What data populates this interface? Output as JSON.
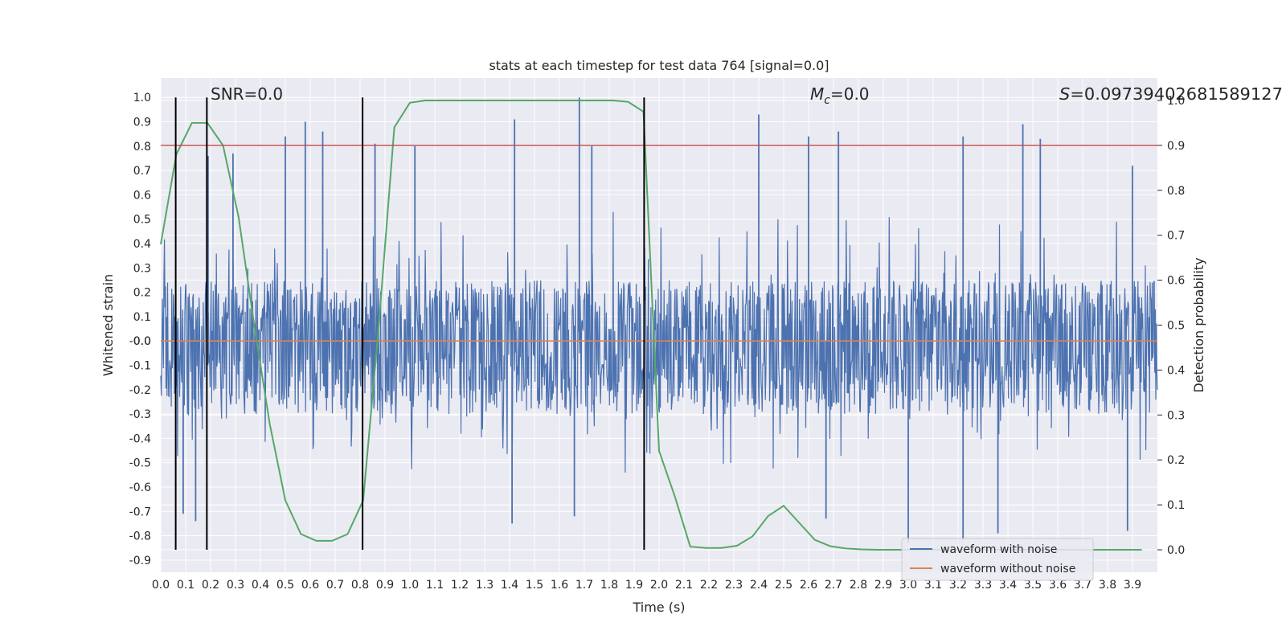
{
  "chart_data": {
    "type": "line",
    "title": "stats at each timestep for test data 764 [signal=0.0]",
    "xlabel": "Time (s)",
    "ylabel": "Whitened strain",
    "ylabel_right": "Detection probability",
    "xlim": [
      0.0,
      4.0
    ],
    "ylim": [
      -0.95,
      1.08
    ],
    "ylim_right": [
      -0.05,
      1.05
    ],
    "x_ticks": [
      "0.0",
      "0.1",
      "0.2",
      "0.3",
      "0.4",
      "0.5",
      "0.6",
      "0.7",
      "0.8",
      "0.9",
      "1.0",
      "1.1",
      "1.2",
      "1.3",
      "1.4",
      "1.5",
      "1.6",
      "1.7",
      "1.8",
      "1.9",
      "2.0",
      "2.1",
      "2.2",
      "2.3",
      "2.4",
      "2.5",
      "2.6",
      "2.7",
      "2.8",
      "2.9",
      "3.0",
      "3.1",
      "3.2",
      "3.3",
      "3.4",
      "3.5",
      "3.6",
      "3.7",
      "3.8",
      "3.9"
    ],
    "y_ticks": [
      "1.0",
      "0.9",
      "0.8",
      "0.7",
      "0.6",
      "0.5",
      "0.4",
      "0.3",
      "0.2",
      "0.1",
      "0.0",
      "-0.0",
      "-0.1",
      "-0.2",
      "-0.3",
      "-0.4",
      "-0.5",
      "-0.6",
      "-0.7",
      "-0.8",
      "-0.9"
    ],
    "y_ticks_right": [
      "1.0",
      "0.9",
      "0.8",
      "0.7",
      "0.6",
      "0.5",
      "0.4",
      "0.3",
      "0.2",
      "0.1",
      "0.0"
    ],
    "annotations": {
      "snr": "SNR=0.0",
      "mc_prefix": "M",
      "mc_sub": "c",
      "mc_value": "=0.0",
      "s_prefix": "S",
      "s_value": "=0.09739402681589127"
    },
    "threshold_line": {
      "y_right": 0.9,
      "color": "#c44e52"
    },
    "vertical_lines_x": [
      0.06,
      0.185,
      0.81,
      1.94
    ],
    "series": [
      {
        "name": "waveform with noise",
        "color": "#4c72b0",
        "description_style": "dense noise",
        "typical_range": [
          -0.3,
          0.25
        ],
        "peak_spikes": [
          {
            "x": 0.19,
            "y": 0.76
          },
          {
            "x": 0.29,
            "y": 0.77
          },
          {
            "x": 0.5,
            "y": 0.84
          },
          {
            "x": 0.58,
            "y": 0.9
          },
          {
            "x": 0.65,
            "y": 0.86
          },
          {
            "x": 0.86,
            "y": 0.81
          },
          {
            "x": 1.02,
            "y": 0.8
          },
          {
            "x": 1.42,
            "y": 0.91
          },
          {
            "x": 1.68,
            "y": 1.0
          },
          {
            "x": 1.73,
            "y": 0.8
          },
          {
            "x": 2.4,
            "y": 0.93
          },
          {
            "x": 2.6,
            "y": 0.84
          },
          {
            "x": 2.72,
            "y": 0.86
          },
          {
            "x": 3.22,
            "y": 0.84
          },
          {
            "x": 3.46,
            "y": 0.89
          },
          {
            "x": 3.53,
            "y": 0.83
          },
          {
            "x": 3.9,
            "y": 0.72
          }
        ],
        "trough_spikes": [
          {
            "x": 0.09,
            "y": -0.71
          },
          {
            "x": 0.14,
            "y": -0.74
          },
          {
            "x": 1.41,
            "y": -0.75
          },
          {
            "x": 1.66,
            "y": -0.72
          },
          {
            "x": 2.67,
            "y": -0.73
          },
          {
            "x": 3.0,
            "y": -0.83
          },
          {
            "x": 3.22,
            "y": -0.82
          },
          {
            "x": 3.36,
            "y": -0.79
          },
          {
            "x": 3.88,
            "y": -0.78
          }
        ]
      },
      {
        "name": "waveform without noise",
        "color": "#dd8452",
        "x": [
          0.0,
          4.0
        ],
        "y": [
          0.0,
          0.0
        ]
      },
      {
        "name": "",
        "axis": "right",
        "color": "#55a868",
        "x": [
          0.0,
          0.0625,
          0.125,
          0.1875,
          0.25,
          0.3125,
          0.375,
          0.4375,
          0.5,
          0.5625,
          0.625,
          0.6875,
          0.75,
          0.8125,
          0.875,
          0.9375,
          1.0,
          1.0625,
          1.125,
          1.1875,
          1.25,
          1.3125,
          1.375,
          1.4375,
          1.5,
          1.5625,
          1.625,
          1.6875,
          1.75,
          1.8125,
          1.875,
          1.9375,
          2.0,
          2.0625,
          2.125,
          2.1875,
          2.25,
          2.3125,
          2.375,
          2.4375,
          2.5,
          2.5625,
          2.625,
          2.6875,
          2.75,
          2.8125,
          2.875,
          2.9375,
          3.0,
          3.0625,
          3.125,
          3.1875,
          3.25,
          3.3125,
          3.375,
          3.4375,
          3.5,
          3.5625,
          3.625,
          3.6875,
          3.75,
          3.8125,
          3.875,
          3.9375
        ],
        "y": [
          0.68,
          0.88,
          0.95,
          0.95,
          0.9,
          0.74,
          0.5,
          0.28,
          0.11,
          0.035,
          0.02,
          0.02,
          0.035,
          0.11,
          0.5,
          0.94,
          0.995,
          1.0,
          1.0,
          1.0,
          1.0,
          1.0,
          1.0,
          1.0,
          1.0,
          1.0,
          1.0,
          1.0,
          1.0,
          1.0,
          0.997,
          0.975,
          0.22,
          0.12,
          0.007,
          0.004,
          0.004,
          0.009,
          0.03,
          0.075,
          0.098,
          0.06,
          0.022,
          0.008,
          0.003,
          0.001,
          0.0,
          0.0,
          0.0,
          0.0,
          0.0,
          0.0,
          0.0,
          0.0,
          0.0,
          0.0,
          0.0,
          0.0,
          0.0,
          0.0,
          0.0,
          0.0,
          0.0,
          0.0
        ]
      }
    ],
    "legend_position": "lower-right",
    "grid": true,
    "style": {
      "axes_bg": "#eaeaf2",
      "grid_color": "#ffffff",
      "vline_color": "#000000"
    }
  }
}
